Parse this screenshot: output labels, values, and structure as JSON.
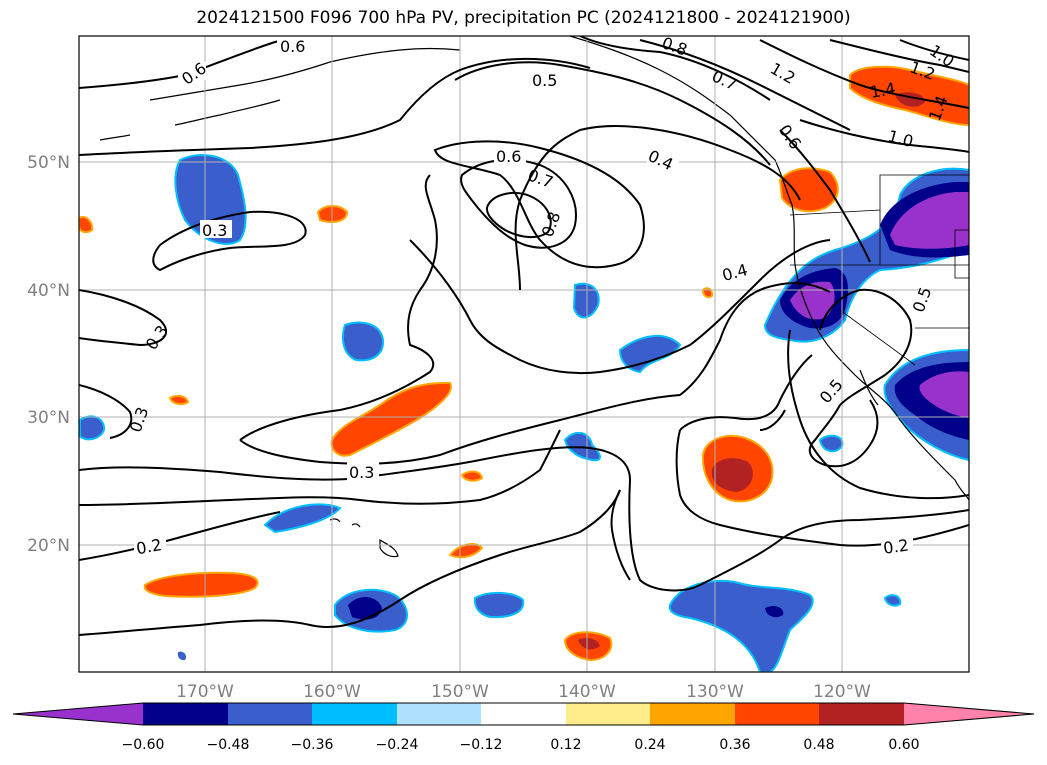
{
  "title": "2024121500 F096 700 hPa PV, precipitation PC (2024121800 - 2024121900)",
  "map": {
    "lon_ticks": [
      "170°W",
      "160°W",
      "150°W",
      "140°W",
      "130°W",
      "120°W"
    ],
    "lat_ticks": [
      "50°N",
      "40°N",
      "30°N",
      "20°N"
    ],
    "gridlines": true,
    "contour_labels": [
      "0.6",
      "0.6",
      "0.5",
      "0.8",
      "0.7",
      "1.2",
      "1.2",
      "1.0",
      "1.4",
      "1.4",
      "1.0",
      "0.6",
      "0.4",
      "0.6",
      "0.7",
      "0.8",
      "0.3",
      "0.4",
      "0.3",
      "0.5",
      "0.3",
      "0.5",
      "0.3",
      "0.2",
      "0.2"
    ]
  },
  "colorbar": {
    "tick_labels": [
      "−0.60",
      "−0.48",
      "−0.36",
      "−0.24",
      "−0.12",
      "0.12",
      "0.24",
      "0.36",
      "0.48",
      "0.60"
    ],
    "colors": [
      "#9932cc",
      "#00008b",
      "#3a5fcd",
      "#00bfff",
      "#b0e2ff",
      "#ffffff",
      "#ffec8b",
      "#ffa500",
      "#ff4500",
      "#b22222",
      "#ff82ab"
    ]
  }
}
